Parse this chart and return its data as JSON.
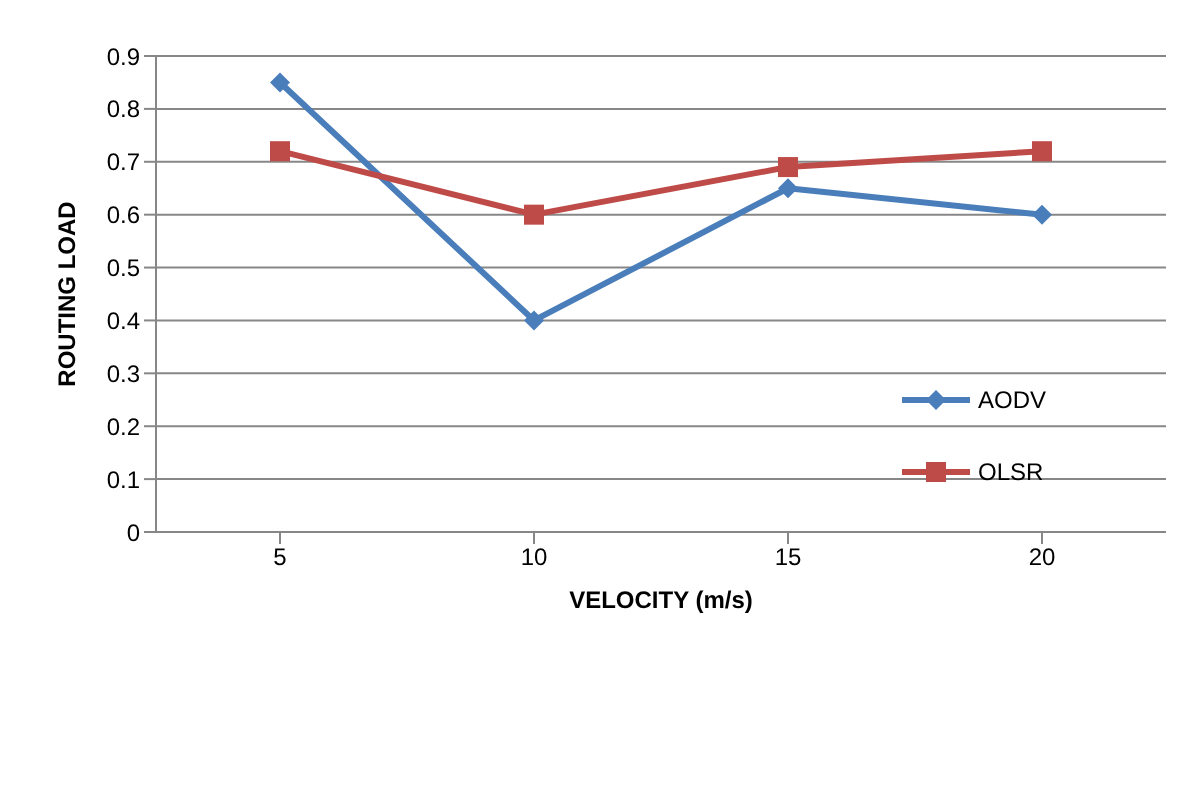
{
  "chart_data": {
    "type": "line",
    "xlabel": "VELOCITY (m/s)",
    "ylabel": "ROUTING LOAD",
    "categories": [
      "5",
      "10",
      "15",
      "20"
    ],
    "series": [
      {
        "name": "AODV",
        "color": "#4a7ebb",
        "marker": "diamond",
        "values": [
          0.85,
          0.4,
          0.65,
          0.6
        ]
      },
      {
        "name": "OLSR",
        "color": "#be4b48",
        "marker": "square",
        "values": [
          0.72,
          0.6,
          0.69,
          0.72
        ]
      }
    ],
    "ylim": [
      0,
      0.9
    ],
    "yticks": [
      0,
      0.1,
      0.2,
      0.3,
      0.4,
      0.5,
      0.6,
      0.7,
      0.8,
      0.9
    ],
    "grid": "y",
    "legend": "right"
  }
}
